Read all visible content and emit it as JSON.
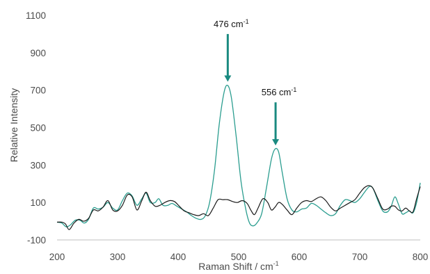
{
  "chart_data": {
    "type": "line",
    "title": "",
    "xlabel": "Raman Shift / cm",
    "xlabel_sup": "-1",
    "ylabel": "Relative Intensity",
    "xlim": [
      200,
      800
    ],
    "ylim": [
      -100,
      1100
    ],
    "xticks": [
      "200",
      "300",
      "400",
      "500",
      "600",
      "700",
      "800"
    ],
    "yticks": [
      "-100",
      "100",
      "300",
      "500",
      "700",
      "900",
      "1100"
    ],
    "grid": false,
    "legend": "none",
    "series": [
      {
        "color": "#2a9d8f",
        "points": [
          [
            200,
            -5
          ],
          [
            208,
            -10
          ],
          [
            215,
            -30
          ],
          [
            222,
            -20
          ],
          [
            230,
            5
          ],
          [
            238,
            5
          ],
          [
            245,
            -10
          ],
          [
            252,
            10
          ],
          [
            260,
            70
          ],
          [
            268,
            65
          ],
          [
            276,
            75
          ],
          [
            284,
            100
          ],
          [
            292,
            70
          ],
          [
            300,
            60
          ],
          [
            308,
            110
          ],
          [
            316,
            150
          ],
          [
            324,
            135
          ],
          [
            332,
            85
          ],
          [
            340,
            120
          ],
          [
            347,
            150
          ],
          [
            354,
            100
          ],
          [
            362,
            100
          ],
          [
            368,
            120
          ],
          [
            375,
            85
          ],
          [
            383,
            85
          ],
          [
            390,
            95
          ],
          [
            398,
            80
          ],
          [
            406,
            65
          ],
          [
            414,
            50
          ],
          [
            422,
            30
          ],
          [
            430,
            15
          ],
          [
            438,
            10
          ],
          [
            445,
            30
          ],
          [
            452,
            100
          ],
          [
            460,
            270
          ],
          [
            468,
            520
          ],
          [
            476,
            690
          ],
          [
            482,
            725
          ],
          [
            488,
            660
          ],
          [
            496,
            450
          ],
          [
            504,
            210
          ],
          [
            512,
            60
          ],
          [
            518,
            -10
          ],
          [
            524,
            -25
          ],
          [
            530,
            -10
          ],
          [
            538,
            40
          ],
          [
            546,
            180
          ],
          [
            554,
            330
          ],
          [
            560,
            385
          ],
          [
            566,
            370
          ],
          [
            572,
            260
          ],
          [
            580,
            120
          ],
          [
            588,
            60
          ],
          [
            596,
            50
          ],
          [
            604,
            65
          ],
          [
            612,
            70
          ],
          [
            620,
            95
          ],
          [
            628,
            85
          ],
          [
            636,
            65
          ],
          [
            644,
            45
          ],
          [
            652,
            30
          ],
          [
            660,
            40
          ],
          [
            668,
            85
          ],
          [
            676,
            115
          ],
          [
            684,
            110
          ],
          [
            692,
            100
          ],
          [
            700,
            120
          ],
          [
            708,
            155
          ],
          [
            716,
            185
          ],
          [
            722,
            175
          ],
          [
            730,
            110
          ],
          [
            738,
            55
          ],
          [
            746,
            50
          ],
          [
            752,
            80
          ],
          [
            758,
            130
          ],
          [
            764,
            90
          ],
          [
            770,
            40
          ],
          [
            776,
            45
          ],
          [
            782,
            55
          ],
          [
            788,
            45
          ],
          [
            794,
            100
          ],
          [
            800,
            205
          ]
        ]
      },
      {
        "color": "#1a1a1a",
        "points": [
          [
            200,
            -5
          ],
          [
            208,
            -5
          ],
          [
            214,
            -15
          ],
          [
            220,
            -45
          ],
          [
            228,
            -10
          ],
          [
            236,
            10
          ],
          [
            244,
            0
          ],
          [
            252,
            15
          ],
          [
            260,
            60
          ],
          [
            268,
            55
          ],
          [
            276,
            75
          ],
          [
            284,
            110
          ],
          [
            292,
            60
          ],
          [
            300,
            55
          ],
          [
            308,
            85
          ],
          [
            316,
            140
          ],
          [
            324,
            130
          ],
          [
            332,
            60
          ],
          [
            340,
            110
          ],
          [
            347,
            155
          ],
          [
            354,
            110
          ],
          [
            362,
            80
          ],
          [
            370,
            85
          ],
          [
            378,
            100
          ],
          [
            386,
            110
          ],
          [
            394,
            105
          ],
          [
            402,
            80
          ],
          [
            410,
            55
          ],
          [
            418,
            45
          ],
          [
            426,
            35
          ],
          [
            434,
            30
          ],
          [
            442,
            40
          ],
          [
            450,
            30
          ],
          [
            458,
            70
          ],
          [
            466,
            115
          ],
          [
            474,
            115
          ],
          [
            482,
            115
          ],
          [
            490,
            105
          ],
          [
            498,
            100
          ],
          [
            506,
            110
          ],
          [
            514,
            95
          ],
          [
            520,
            60
          ],
          [
            526,
            35
          ],
          [
            532,
            70
          ],
          [
            540,
            120
          ],
          [
            548,
            100
          ],
          [
            554,
            60
          ],
          [
            560,
            75
          ],
          [
            566,
            100
          ],
          [
            572,
            90
          ],
          [
            580,
            60
          ],
          [
            588,
            35
          ],
          [
            596,
            70
          ],
          [
            604,
            100
          ],
          [
            612,
            110
          ],
          [
            620,
            105
          ],
          [
            628,
            120
          ],
          [
            636,
            130
          ],
          [
            644,
            110
          ],
          [
            652,
            75
          ],
          [
            660,
            55
          ],
          [
            668,
            70
          ],
          [
            676,
            85
          ],
          [
            684,
            100
          ],
          [
            692,
            115
          ],
          [
            700,
            150
          ],
          [
            708,
            180
          ],
          [
            716,
            190
          ],
          [
            722,
            175
          ],
          [
            730,
            120
          ],
          [
            738,
            65
          ],
          [
            746,
            65
          ],
          [
            752,
            80
          ],
          [
            758,
            80
          ],
          [
            764,
            60
          ],
          [
            770,
            55
          ],
          [
            776,
            70
          ],
          [
            782,
            55
          ],
          [
            788,
            50
          ],
          [
            794,
            120
          ],
          [
            800,
            185
          ]
        ]
      }
    ],
    "annotations": [
      {
        "label": "476 cm",
        "sup": "-1",
        "x": 482,
        "arrow_from": 1000,
        "arrow_to": 745,
        "color": "#1a8a80"
      },
      {
        "label": "556 cm",
        "sup": "-1",
        "x": 561,
        "arrow_from": 635,
        "arrow_to": 405,
        "color": "#1a8a80"
      }
    ],
    "axis_color": "#bfbfbf"
  }
}
